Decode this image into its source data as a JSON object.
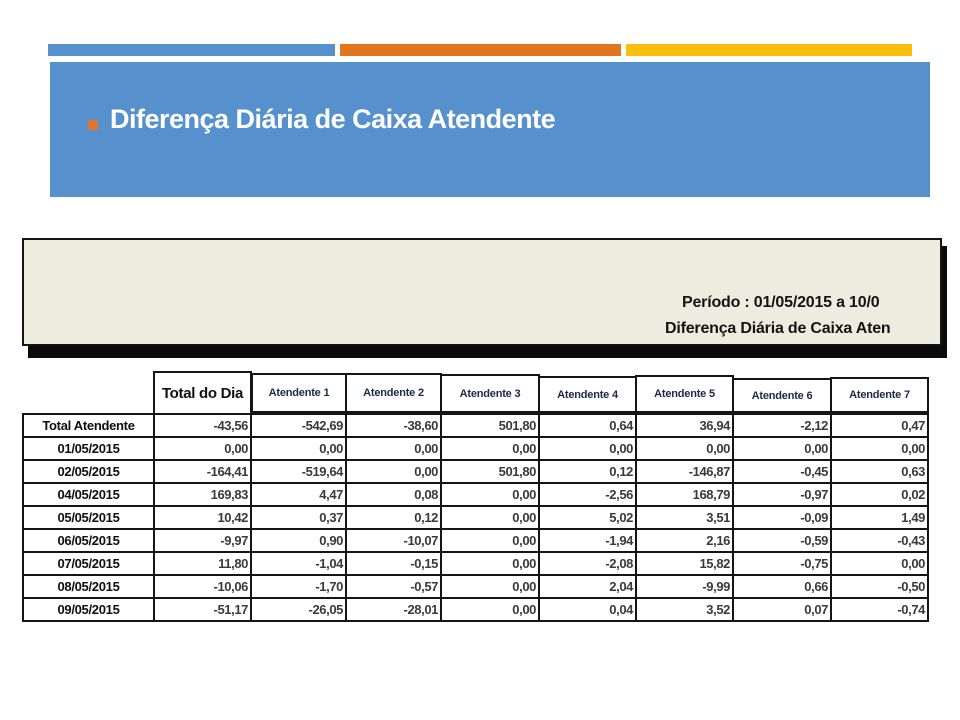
{
  "slide": {
    "title": "Diferença Diária de Caixa Atendente",
    "accent_colors": {
      "blue": "#5691CE",
      "orange": "#E2751D",
      "yellow": "#FDBE0D"
    }
  },
  "report": {
    "period_line": "Período : 01/05/2015 a 10/0",
    "title_line": "Diferença Diária de Caixa Aten",
    "table": {
      "corner_header": "",
      "day_total_header": "Total do Dia",
      "attendant_headers": [
        "Atendente 1",
        "Atendente 2",
        "Atendente 3",
        "Atendente 4",
        "Atendente 5",
        "Atendente 6",
        "Atendente 7"
      ],
      "rows": [
        {
          "label": "Total Atendente",
          "values": [
            "-43,56",
            "-542,69",
            "-38,60",
            "501,80",
            "0,64",
            "36,94",
            "-2,12",
            "0,47"
          ]
        },
        {
          "label": "01/05/2015",
          "values": [
            "0,00",
            "0,00",
            "0,00",
            "0,00",
            "0,00",
            "0,00",
            "0,00",
            "0,00"
          ]
        },
        {
          "label": "02/05/2015",
          "values": [
            "-164,41",
            "-519,64",
            "0,00",
            "501,80",
            "0,12",
            "-146,87",
            "-0,45",
            "0,63"
          ]
        },
        {
          "label": "04/05/2015",
          "values": [
            "169,83",
            "4,47",
            "0,08",
            "0,00",
            "-2,56",
            "168,79",
            "-0,97",
            "0,02"
          ]
        },
        {
          "label": "05/05/2015",
          "values": [
            "10,42",
            "0,37",
            "0,12",
            "0,00",
            "5,02",
            "3,51",
            "-0,09",
            "1,49"
          ]
        },
        {
          "label": "06/05/2015",
          "values": [
            "-9,97",
            "0,90",
            "-10,07",
            "0,00",
            "-1,94",
            "2,16",
            "-0,59",
            "-0,43"
          ]
        },
        {
          "label": "07/05/2015",
          "values": [
            "11,80",
            "-1,04",
            "-0,15",
            "0,00",
            "-2,08",
            "15,82",
            "-0,75",
            "0,00"
          ]
        },
        {
          "label": "08/05/2015",
          "values": [
            "-10,06",
            "-1,70",
            "-0,57",
            "0,00",
            "2,04",
            "-9,99",
            "0,66",
            "-0,50"
          ]
        },
        {
          "label": "09/05/2015",
          "values": [
            "-51,17",
            "-26,05",
            "-28,01",
            "0,00",
            "0,04",
            "3,52",
            "0,07",
            "-0,74"
          ]
        }
      ]
    }
  }
}
